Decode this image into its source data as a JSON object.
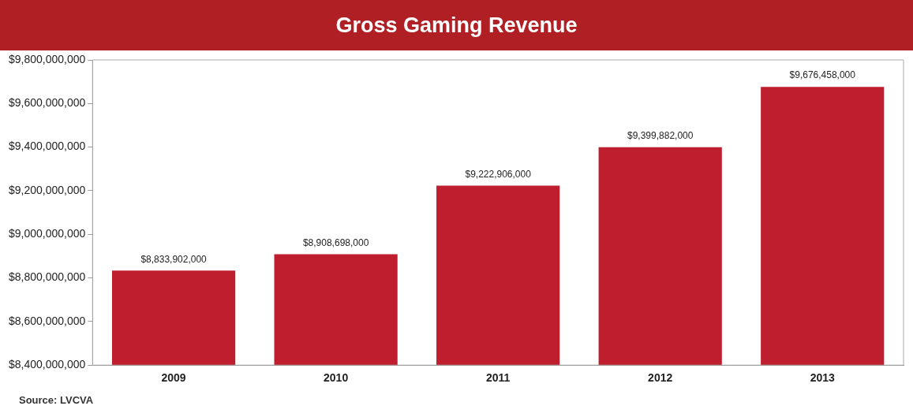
{
  "chart_data": {
    "type": "bar",
    "title": "Gross Gaming Revenue",
    "categories": [
      "2009",
      "2010",
      "2011",
      "2012",
      "2013"
    ],
    "values": [
      8833902000,
      8908698000,
      9222906000,
      9399882000,
      9676458000
    ],
    "value_labels": [
      "$8,833,902,000",
      "$8,908,698,000",
      "$9,222,906,000",
      "$9,399,882,000",
      "$9,676,458,000"
    ],
    "color": "#be1e2d",
    "ylim": [
      8400000000,
      9800000000
    ],
    "yticks": [
      {
        "value": 8400000000,
        "label": "$8,400,000,000"
      },
      {
        "value": 8600000000,
        "label": "$8,600,000,000"
      },
      {
        "value": 8800000000,
        "label": "$8,800,000,000"
      },
      {
        "value": 9000000000,
        "label": "$9,000,000,000"
      },
      {
        "value": 9200000000,
        "label": "$9,200,000,000"
      },
      {
        "value": 9400000000,
        "label": "$9,400,000,000"
      },
      {
        "value": 9600000000,
        "label": "$9,600,000,000"
      },
      {
        "value": 9800000000,
        "label": "$9,800,000,000"
      }
    ],
    "grid": false,
    "annotations": [
      "Source: LVCVA"
    ]
  }
}
